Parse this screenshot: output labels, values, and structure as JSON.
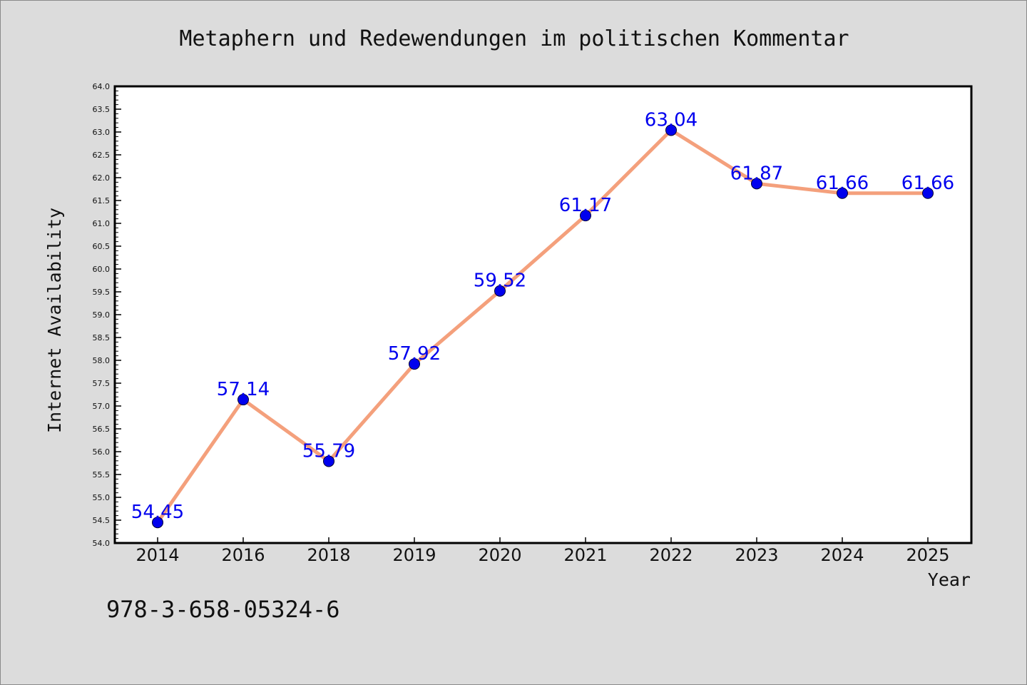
{
  "chart_data": {
    "type": "line",
    "title": "Metaphern und Redewendungen im politischen Kommentar",
    "xlabel": "Year",
    "ylabel": "Internet Availability",
    "categories": [
      "2014",
      "2016",
      "2018",
      "2019",
      "2020",
      "2021",
      "2022",
      "2023",
      "2024",
      "2025"
    ],
    "values": [
      54.45,
      57.14,
      55.79,
      57.92,
      59.52,
      61.17,
      63.04,
      61.87,
      61.66,
      61.66
    ],
    "value_labels": [
      "54.45",
      "57.14",
      "55.79",
      "57.92",
      "59.52",
      "61.17",
      "63.04",
      "61.87",
      "61.66",
      "61.66"
    ],
    "ylim": [
      54.0,
      64.0
    ],
    "y_tick_step": 0.5,
    "y_ticks": [
      "54.0",
      "54.5",
      "55.0",
      "55.5",
      "56.0",
      "56.5",
      "57.0",
      "57.5",
      "58.0",
      "58.5",
      "59.0",
      "59.5",
      "60.0",
      "60.5",
      "61.0",
      "61.5",
      "62.0",
      "62.5",
      "63.0",
      "63.5",
      "64.0"
    ],
    "grid": false,
    "legend": "none",
    "colors": {
      "line": "#f4a07c",
      "marker": "#0000ee",
      "label": "#0000ee",
      "background": "#dcdcdc",
      "plot_background": "#ffffff"
    }
  },
  "footer": {
    "isbn": "978-3-658-05324-6"
  }
}
